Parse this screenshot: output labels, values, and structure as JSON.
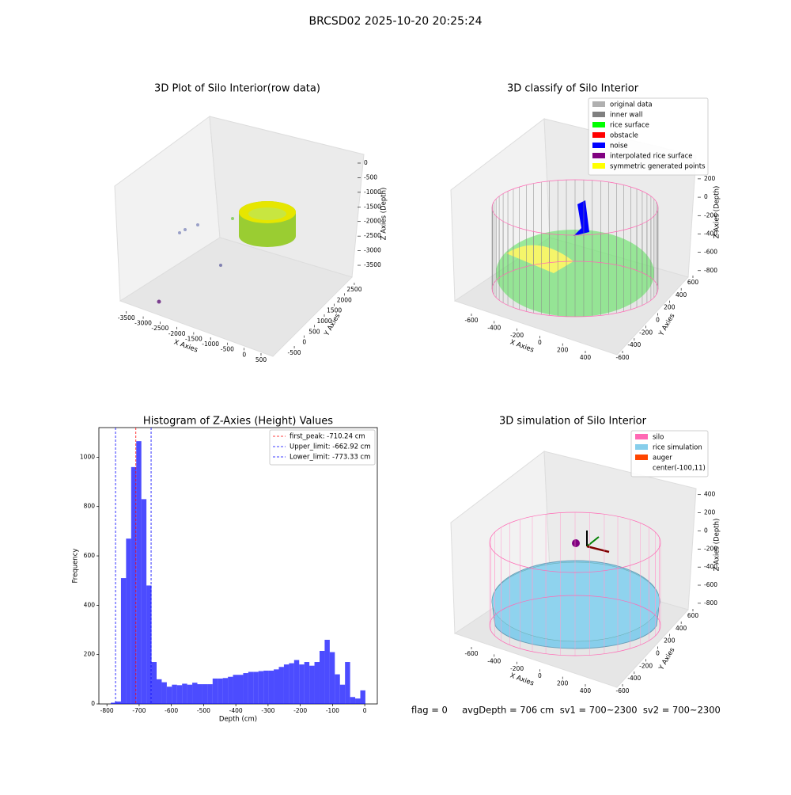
{
  "title": "BRCSD02 2025-10-20 20:25:24",
  "footer": "flag = 0     avgDepth = 706 cm  sv1 = 700~2300  sv2 = 700~2300",
  "chart_data": [
    {
      "type": "scatter3d",
      "title": "3D Plot of Silo Interior(row data)",
      "xlabel": "X Axies",
      "ylabel": "Y Axies",
      "zlabel": "Z Axies (Depth)",
      "xlim": [
        -3800,
        700
      ],
      "xticks": [
        -3500,
        -3000,
        -2500,
        -2000,
        -1500,
        -1000,
        -500,
        0,
        500
      ],
      "ylim": [
        -700,
        2700
      ],
      "yticks": [
        -500,
        0,
        500,
        1000,
        1500,
        2000,
        2500
      ],
      "zlim": [
        -3700,
        100
      ],
      "zticks": [
        0,
        -500,
        -1000,
        -1500,
        -2000,
        -2500,
        -3000,
        -3500
      ]
    },
    {
      "type": "scatter3d",
      "title": "3D classify of Silo Interior",
      "xlabel": "X Axies",
      "ylabel": "Y Axies",
      "zlabel": "Z Axies (Depth)",
      "xlim": [
        -700,
        500
      ],
      "xticks": [
        -600,
        -400,
        -200,
        0,
        200,
        400
      ],
      "ylim": [
        -700,
        700
      ],
      "yticks": [
        -600,
        -400,
        -200,
        0,
        200,
        400,
        600
      ],
      "zlim": [
        -900,
        300
      ],
      "zticks": [
        200,
        0,
        -200,
        -400,
        -600,
        -800
      ],
      "series": [
        {
          "name": "original data",
          "color": "#b0b0b0"
        },
        {
          "name": "inner wall",
          "color": "#808080"
        },
        {
          "name": "rice surface",
          "color": "#00ff00"
        },
        {
          "name": "obstacle",
          "color": "#ff0000"
        },
        {
          "name": "noise",
          "color": "#0000ff"
        },
        {
          "name": "interpolated rice surface",
          "color": "#800080"
        },
        {
          "name": "symmetric generated points",
          "color": "#ffff00"
        }
      ]
    },
    {
      "type": "histogram",
      "title": "Histogram of Z-Axies (Height) Values",
      "xlabel": "Depth (cm)",
      "ylabel": "Frequency",
      "color": "#0000ff",
      "bins": [
        -788,
        -772.2,
        -756.4,
        -740.6,
        -724.8,
        -709,
        -693.2,
        -677.4,
        -661.6,
        -645.8,
        -630,
        -614.2,
        -598.4,
        -582.6,
        -566.8,
        -551,
        -535.2,
        -519.4,
        -503.6,
        -487.8,
        -472,
        -456.2,
        -440.4,
        -424.6,
        -408.8,
        -393,
        -377.2,
        -361.4,
        -345.6,
        -329.8,
        -314,
        -298.2,
        -282.4,
        -266.6,
        -250.8,
        -235,
        -219.2,
        -203.4,
        -187.6,
        -171.8,
        -156,
        -140.2,
        -124.4,
        -108.6,
        -92.8,
        -77,
        -61.2,
        -45.4,
        -29.6,
        -13.8,
        2
      ],
      "values": [
        5,
        10,
        510,
        670,
        960,
        1065,
        830,
        480,
        170,
        100,
        88,
        70,
        78,
        76,
        82,
        78,
        86,
        80,
        80,
        80,
        103,
        103,
        105,
        110,
        118,
        118,
        125,
        130,
        130,
        133,
        135,
        135,
        140,
        150,
        160,
        165,
        178,
        160,
        170,
        155,
        170,
        215,
        260,
        210,
        120,
        78,
        170,
        28,
        22,
        55
      ],
      "xlim": [
        -825,
        39
      ],
      "xticks": [
        -800,
        -700,
        -600,
        -500,
        -400,
        -300,
        -200,
        -100,
        0
      ],
      "ylim": [
        0,
        1120
      ],
      "yticks": [
        0,
        200,
        400,
        600,
        800,
        1000
      ],
      "vlines": [
        {
          "label": "first_peak: -710.24 cm",
          "value": -710.24,
          "color": "#ff0000"
        },
        {
          "label": "Upper_limit: -662.92 cm",
          "value": -662.92,
          "color": "#0000ff"
        },
        {
          "label": "Lower_limit: -773.33 cm",
          "value": -773.33,
          "color": "#0000ff"
        }
      ]
    },
    {
      "type": "scatter3d",
      "title": "3D simulation of Silo Interior",
      "xlabel": "X Axies",
      "ylabel": "Y Axies",
      "zlabel": "Z Axies (Depth)",
      "xlim": [
        -700,
        500
      ],
      "xticks": [
        -600,
        -400,
        -200,
        0,
        200,
        400
      ],
      "ylim": [
        -700,
        700
      ],
      "yticks": [
        -600,
        -400,
        -200,
        0,
        200,
        400,
        600
      ],
      "zlim": [
        -900,
        500
      ],
      "zticks": [
        400,
        200,
        0,
        -200,
        -400,
        -600,
        -800
      ],
      "series": [
        {
          "name": "silo",
          "color": "#ff69b4"
        },
        {
          "name": "rice simulation",
          "color": "#87ceeb"
        },
        {
          "name": "auger",
          "color": "#ff4500"
        },
        {
          "name": "center(-100,11)",
          "color": "none"
        }
      ]
    }
  ]
}
